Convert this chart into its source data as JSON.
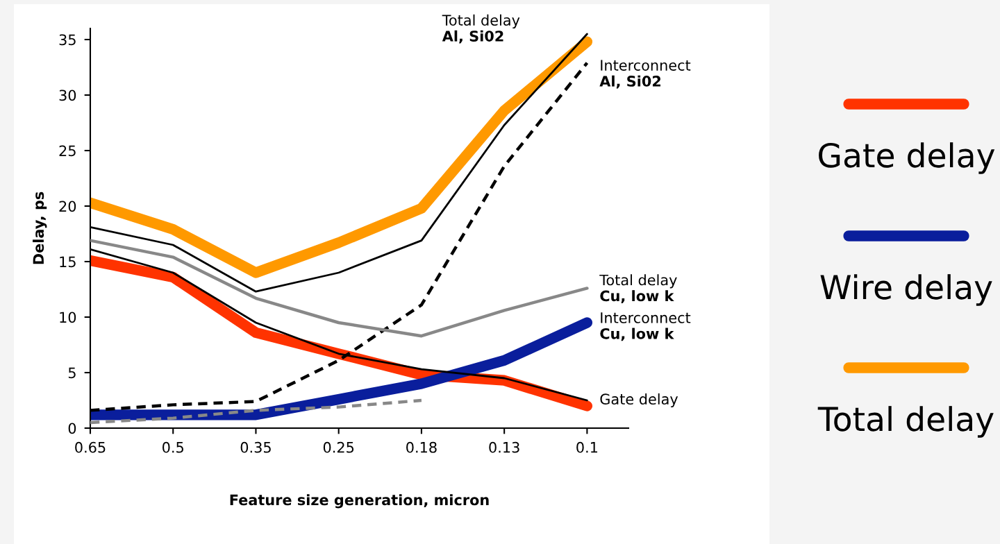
{
  "chart_data": {
    "type": "line",
    "xlabel": "Feature size generation, micron",
    "ylabel": "Delay, ps",
    "categories": [
      "0.65",
      "0.5",
      "0.35",
      "0.25",
      "0.18",
      "0.13",
      "0.1"
    ],
    "ylim": [
      0,
      36
    ],
    "yticks": [
      0,
      5,
      10,
      15,
      20,
      25,
      30,
      35
    ],
    "grid": false,
    "legend": "right",
    "marker": "none",
    "series": [
      {
        "color": "#000000",
        "line_style": "solid",
        "values": [
          18.1,
          16.5,
          12.3,
          14.0,
          16.9,
          27.3,
          35.5
        ]
      },
      {
        "color": "#000000",
        "line_style": "dashed",
        "values": [
          1.6,
          2.1,
          2.4,
          6.1,
          11.1,
          23.6,
          32.9
        ]
      },
      {
        "color": "#888888",
        "line_style": "solid",
        "values": [
          16.9,
          15.4,
          11.7,
          9.5,
          8.3,
          10.6,
          12.6
        ]
      },
      {
        "color": "#000000",
        "line_style": "solid",
        "values": [
          16.1,
          14.0,
          9.5,
          6.7,
          5.3,
          4.5,
          2.5
        ]
      },
      {
        "name": "Gate delay",
        "color": "#ff3300",
        "line_style": "solid",
        "values": [
          15.1,
          13.6,
          8.6,
          6.7,
          4.8,
          4.3,
          2.0
        ]
      },
      {
        "name": "Wire delay",
        "color": "#0a1e9c",
        "line_style": "solid",
        "values": [
          1.2,
          1.2,
          1.2,
          2.6,
          4.0,
          6.1,
          9.5
        ]
      },
      {
        "color": "#888888",
        "line_style": "dashed",
        "values": [
          0.5,
          0.9,
          1.6,
          1.9,
          2.5,
          null,
          null
        ]
      },
      {
        "name": "Total delay",
        "color": "#ff9900",
        "line_style": "solid",
        "values": [
          20.3,
          17.9,
          14.0,
          16.7,
          19.8,
          28.6,
          34.8
        ]
      }
    ],
    "annotations": [
      "Total delay\nAl, Si02",
      {
        "text": "Interconnect\nAl, Si02",
        "x": "0.1",
        "y": 32.9
      },
      {
        "text": "Total delay\nCu, low k",
        "x": "0.1",
        "y": 12.6
      },
      {
        "text": "Interconnect\nCu, low k",
        "x": "0.1",
        "y": 9.5
      },
      {
        "text": "Gate delay",
        "x": "0.1",
        "y": 2.5
      }
    ]
  }
}
